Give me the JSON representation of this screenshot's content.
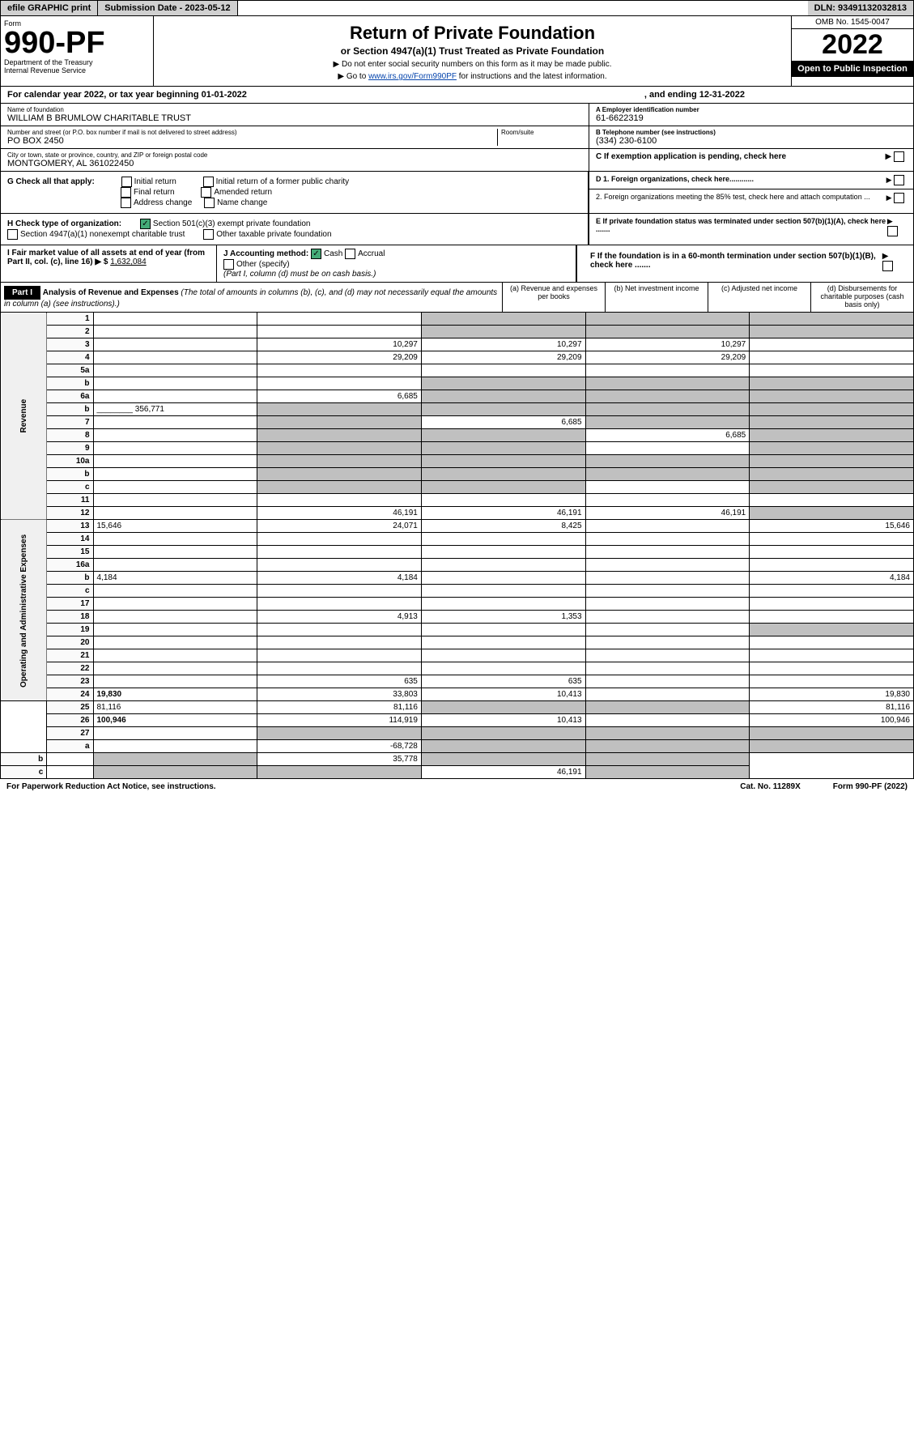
{
  "topbar": {
    "efile": "efile GRAPHIC print",
    "subdate_label": "Submission Date - ",
    "subdate": "2023-05-12",
    "dln_label": "DLN: ",
    "dln": "93491132032813"
  },
  "header": {
    "form_word": "Form",
    "form_no": "990-PF",
    "dept": "Department of the Treasury",
    "irs": "Internal Revenue Service",
    "title": "Return of Private Foundation",
    "subtitle": "or Section 4947(a)(1) Trust Treated as Private Foundation",
    "instr1": "▶ Do not enter social security numbers on this form as it may be made public.",
    "instr2_pre": "▶ Go to ",
    "instr2_link": "www.irs.gov/Form990PF",
    "instr2_post": " for instructions and the latest information.",
    "omb": "OMB No. 1545-0047",
    "year": "2022",
    "inspect": "Open to Public Inspection"
  },
  "cal": {
    "text": "For calendar year 2022, or tax year beginning 01-01-2022",
    "end": ", and ending 12-31-2022"
  },
  "name": {
    "label": "Name of foundation",
    "value": "WILLIAM B BRUMLOW CHARITABLE TRUST"
  },
  "ein": {
    "label": "A Employer identification number",
    "value": "61-6622319"
  },
  "street": {
    "label": "Number and street (or P.O. box number if mail is not delivered to street address)",
    "value": "PO BOX 2450",
    "room": "Room/suite"
  },
  "tel": {
    "label": "B Telephone number (see instructions)",
    "value": "(334) 230-6100"
  },
  "city": {
    "label": "City or town, state or province, country, and ZIP or foreign postal code",
    "value": "MONTGOMERY, AL  361022450"
  },
  "C": {
    "label": "C If exemption application is pending, check here"
  },
  "G": {
    "label": "G Check all that apply:",
    "items": [
      "Initial return",
      "Final return",
      "Address change",
      "Initial return of a former public charity",
      "Amended return",
      "Name change"
    ]
  },
  "D": {
    "d1": "D 1. Foreign organizations, check here............",
    "d2": "2. Foreign organizations meeting the 85% test, check here and attach computation ..."
  },
  "H": {
    "label": "H Check type of organization:",
    "a": "Section 501(c)(3) exempt private foundation",
    "b": "Section 4947(a)(1) nonexempt charitable trust",
    "c": "Other taxable private foundation"
  },
  "E": {
    "label": "E If private foundation status was terminated under section 507(b)(1)(A), check here ......."
  },
  "I": {
    "label": "I Fair market value of all assets at end of year (from Part II, col. (c), line 16) ▶ $",
    "value": "1,632,084"
  },
  "J": {
    "label": "J Accounting method:",
    "cash": "Cash",
    "accrual": "Accrual",
    "other": "Other (specify)",
    "note": "(Part I, column (d) must be on cash basis.)"
  },
  "F": {
    "label": "F If the foundation is in a 60-month termination under section 507(b)(1)(B), check here ......."
  },
  "part1": {
    "tag": "Part I",
    "title": "Analysis of Revenue and Expenses",
    "note": "(The total of amounts in columns (b), (c), and (d) may not necessarily equal the amounts in column (a) (see instructions).)",
    "cols": {
      "a": "(a) Revenue and expenses per books",
      "b": "(b) Net investment income",
      "c": "(c) Adjusted net income",
      "d": "(d) Disbursements for charitable purposes (cash basis only)"
    }
  },
  "side": {
    "rev": "Revenue",
    "exp": "Operating and Administrative Expenses"
  },
  "rows": [
    {
      "n": "1",
      "d": "",
      "a": "",
      "b": "",
      "c": "",
      "sb": true,
      "sc": true,
      "sd": true
    },
    {
      "n": "2",
      "d": "",
      "a": "",
      "b": "",
      "c": "",
      "sb": true,
      "sc": true,
      "sd": true,
      "bold_not": true
    },
    {
      "n": "3",
      "d": "",
      "a": "10,297",
      "b": "10,297",
      "c": "10,297"
    },
    {
      "n": "4",
      "d": "",
      "a": "29,209",
      "b": "29,209",
      "c": "29,209"
    },
    {
      "n": "5a",
      "d": "",
      "a": "",
      "b": "",
      "c": ""
    },
    {
      "n": "b",
      "d": "",
      "a": "",
      "b": "",
      "c": "",
      "sb": true,
      "sc": true,
      "sd": true,
      "inline": true
    },
    {
      "n": "6a",
      "d": "",
      "a": "6,685",
      "b": "",
      "c": "",
      "sb": true,
      "sc": true,
      "sd": true
    },
    {
      "n": "b",
      "d": "",
      "inline_val": "356,771",
      "a": "",
      "b": "",
      "c": "",
      "sa": true,
      "sb": true,
      "sc": true,
      "sd": true
    },
    {
      "n": "7",
      "d": "",
      "a": "",
      "b": "6,685",
      "c": "",
      "sa": true,
      "sc": true,
      "sd": true
    },
    {
      "n": "8",
      "d": "",
      "a": "",
      "b": "",
      "c": "6,685",
      "sa": true,
      "sb": true,
      "sd": true
    },
    {
      "n": "9",
      "d": "",
      "a": "",
      "b": "",
      "c": "",
      "sa": true,
      "sb": true,
      "sd": true
    },
    {
      "n": "10a",
      "d": "",
      "inline": true,
      "a": "",
      "b": "",
      "c": "",
      "sa": true,
      "sb": true,
      "sc": true,
      "sd": true
    },
    {
      "n": "b",
      "d": "",
      "inline": true,
      "a": "",
      "b": "",
      "c": "",
      "sa": true,
      "sb": true,
      "sc": true,
      "sd": true
    },
    {
      "n": "c",
      "d": "",
      "a": "",
      "b": "",
      "c": "",
      "sa": true,
      "sb": true,
      "sd": true
    },
    {
      "n": "11",
      "d": "",
      "a": "",
      "b": "",
      "c": ""
    },
    {
      "n": "12",
      "d": "",
      "a": "46,191",
      "b": "46,191",
      "c": "46,191",
      "sd": true,
      "bold": true
    },
    {
      "n": "13",
      "d": "15,646",
      "a": "24,071",
      "b": "8,425",
      "c": ""
    },
    {
      "n": "14",
      "d": "",
      "a": "",
      "b": "",
      "c": ""
    },
    {
      "n": "15",
      "d": "",
      "a": "",
      "b": "",
      "c": ""
    },
    {
      "n": "16a",
      "d": "",
      "a": "",
      "b": "",
      "c": ""
    },
    {
      "n": "b",
      "d": "4,184",
      "a": "4,184",
      "b": "",
      "c": ""
    },
    {
      "n": "c",
      "d": "",
      "a": "",
      "b": "",
      "c": ""
    },
    {
      "n": "17",
      "d": "",
      "a": "",
      "b": "",
      "c": ""
    },
    {
      "n": "18",
      "d": "",
      "a": "4,913",
      "b": "1,353",
      "c": ""
    },
    {
      "n": "19",
      "d": "",
      "a": "",
      "b": "",
      "c": "",
      "sd": true
    },
    {
      "n": "20",
      "d": "",
      "a": "",
      "b": "",
      "c": ""
    },
    {
      "n": "21",
      "d": "",
      "a": "",
      "b": "",
      "c": ""
    },
    {
      "n": "22",
      "d": "",
      "a": "",
      "b": "",
      "c": ""
    },
    {
      "n": "23",
      "d": "",
      "a": "635",
      "b": "635",
      "c": ""
    },
    {
      "n": "24",
      "d": "19,830",
      "a": "33,803",
      "b": "10,413",
      "c": "",
      "bold": true
    },
    {
      "n": "25",
      "d": "81,116",
      "a": "81,116",
      "b": "",
      "c": "",
      "sb": true,
      "sc": true
    },
    {
      "n": "26",
      "d": "100,946",
      "a": "114,919",
      "b": "10,413",
      "c": "",
      "bold": true
    },
    {
      "n": "27",
      "d": "",
      "a": "",
      "b": "",
      "c": "",
      "sa": true,
      "sb": true,
      "sc": true,
      "sd": true
    },
    {
      "n": "a",
      "d": "",
      "a": "-68,728",
      "b": "",
      "c": "",
      "sb": true,
      "sc": true,
      "sd": true,
      "bold": true
    },
    {
      "n": "b",
      "d": "",
      "a": "",
      "b": "35,778",
      "c": "",
      "sa": true,
      "sc": true,
      "sd": true,
      "bold": true
    },
    {
      "n": "c",
      "d": "",
      "a": "",
      "b": "",
      "c": "46,191",
      "sa": true,
      "sb": true,
      "sd": true,
      "bold": true
    }
  ],
  "footer": {
    "l": "For Paperwork Reduction Act Notice, see instructions.",
    "c": "Cat. No. 11289X",
    "r": "Form 990-PF (2022)"
  }
}
